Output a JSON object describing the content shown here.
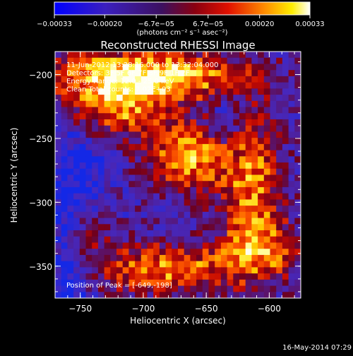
{
  "chart_data": {
    "type": "heatmap",
    "title": "Reconstructed RHESSI Image",
    "xlabel": "Heliocentric X (arcsec)",
    "ylabel": "Heliocentric Y (arcsec)",
    "xlim": [
      -770,
      -575
    ],
    "ylim": [
      -375,
      -182
    ],
    "x_ticks": [
      {
        "value": -750,
        "label": "−750"
      },
      {
        "value": -700,
        "label": "−700"
      },
      {
        "value": -650,
        "label": "−650"
      },
      {
        "value": -600,
        "label": "−600"
      }
    ],
    "y_ticks": [
      {
        "value": -200,
        "label": "−200"
      },
      {
        "value": -250,
        "label": "−250"
      },
      {
        "value": -300,
        "label": "−300"
      },
      {
        "value": -350,
        "label": "−350"
      }
    ],
    "colorbar": {
      "range": [
        -0.00033,
        0.00033
      ],
      "unit_label": "(photons cm⁻² s⁻¹ asec⁻²)",
      "ticks": [
        {
          "value": -0.00033,
          "label": "−0.00033"
        },
        {
          "value": -0.0002,
          "label": "−0.00020"
        },
        {
          "value": -6.7e-05,
          "label": "−6.7e−05"
        },
        {
          "value": 6.7e-05,
          "label": "6.7e−05"
        },
        {
          "value": 0.0002,
          "label": "0.00020"
        },
        {
          "value": 0.00033,
          "label": "0.00033"
        }
      ]
    },
    "info_lines": [
      "11-Jun-2012 13:28:16.000 to 13:32:04.000",
      "Detectors: 3F 5F 6F 7F 8F 9F 1F 2F",
      "Energy Range: 12.0 - 25.0 keV",
      "Clean    Total counts: 7.02E+03"
    ],
    "peak_label": "Position of Peak = [-649,-198]",
    "peak": {
      "x": -649,
      "y": -198
    },
    "grid": false,
    "colormap": [
      "#0000ff",
      "#7f007f",
      "#cc0000",
      "#ff8000",
      "#ffff00",
      "#ffffff"
    ]
  },
  "footer": {
    "timestamp": "16-May-2014 07:29"
  }
}
